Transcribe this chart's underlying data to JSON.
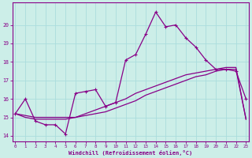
{
  "xlabel": "Windchill (Refroidissement éolien,°C)",
  "background_color": "#cceee8",
  "grid_color": "#aadddd",
  "line_color": "#880088",
  "x_ticks": [
    0,
    1,
    2,
    3,
    4,
    5,
    6,
    7,
    8,
    9,
    10,
    11,
    12,
    13,
    14,
    15,
    16,
    17,
    18,
    19,
    20,
    21,
    22,
    23
  ],
  "y_ticks": [
    14,
    15,
    16,
    17,
    18,
    19,
    20
  ],
  "ylim": [
    13.7,
    21.2
  ],
  "xlim": [
    -0.3,
    23.3
  ],
  "series1_x": [
    0,
    1,
    2,
    3,
    4,
    5,
    6,
    7,
    8,
    9,
    10,
    11,
    12,
    13,
    14,
    15,
    16,
    17,
    18,
    19,
    20,
    21,
    22,
    23
  ],
  "series1_y": [
    15.2,
    16.0,
    14.8,
    14.6,
    14.6,
    14.1,
    16.3,
    16.4,
    16.5,
    15.6,
    15.8,
    18.1,
    18.4,
    19.5,
    20.7,
    19.9,
    20.0,
    19.3,
    18.8,
    18.1,
    17.6,
    17.6,
    17.5,
    16.0
  ],
  "series2_x": [
    0,
    1,
    2,
    3,
    4,
    5,
    6,
    7,
    8,
    9,
    10,
    11,
    12,
    13,
    14,
    15,
    16,
    17,
    18,
    19,
    20,
    21,
    22,
    23
  ],
  "series2_y": [
    15.2,
    15.1,
    15.0,
    15.0,
    15.0,
    15.0,
    15.0,
    15.1,
    15.2,
    15.3,
    15.5,
    15.7,
    15.9,
    16.2,
    16.4,
    16.6,
    16.8,
    17.0,
    17.2,
    17.3,
    17.5,
    17.6,
    17.6,
    14.9
  ],
  "series3_x": [
    0,
    1,
    2,
    3,
    4,
    5,
    6,
    7,
    8,
    9,
    10,
    11,
    12,
    13,
    14,
    15,
    16,
    17,
    18,
    19,
    20,
    21,
    22,
    23
  ],
  "series3_y": [
    15.2,
    15.0,
    14.9,
    14.9,
    14.9,
    14.9,
    15.0,
    15.2,
    15.4,
    15.6,
    15.8,
    16.0,
    16.3,
    16.5,
    16.7,
    16.9,
    17.1,
    17.3,
    17.4,
    17.5,
    17.6,
    17.7,
    17.7,
    14.9
  ]
}
